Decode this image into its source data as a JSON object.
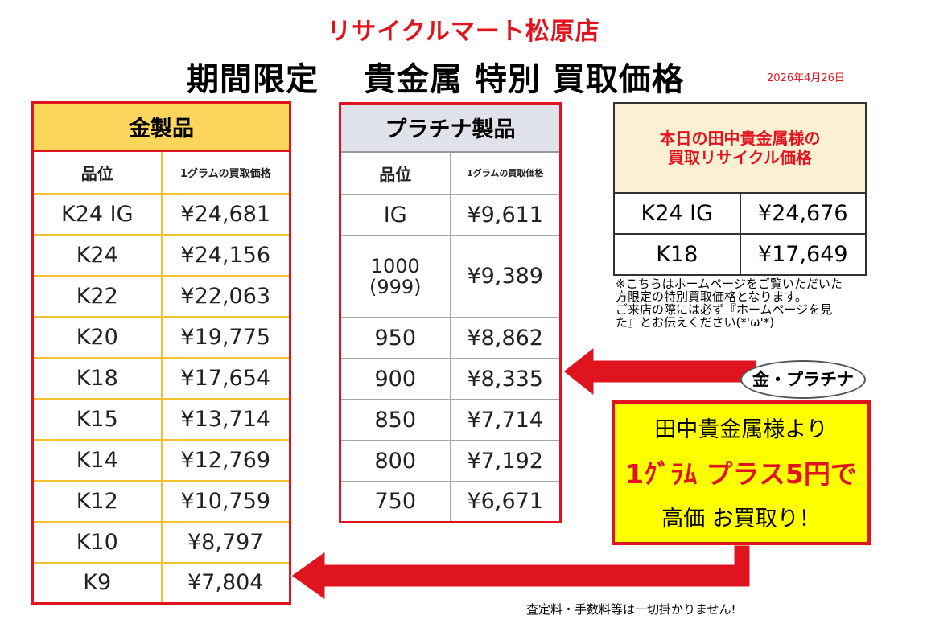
{
  "header": {
    "shop_name": "リサイクルマート松原店",
    "title": "期間限定　 貴金属 特別 買取価格",
    "date": "2026年4月26日"
  },
  "gold": {
    "title": "金製品",
    "col_grade": "品位",
    "col_price": "1グラムの買取価格",
    "rows": [
      {
        "grade": "K24 IG",
        "price": "¥24,681"
      },
      {
        "grade": "K24",
        "price": "¥24,156"
      },
      {
        "grade": "K22",
        "price": "¥22,063"
      },
      {
        "grade": "K20",
        "price": "¥19,775"
      },
      {
        "grade": "K18",
        "price": "¥17,654"
      },
      {
        "grade": "K15",
        "price": "¥13,714"
      },
      {
        "grade": "K14",
        "price": "¥12,769"
      },
      {
        "grade": "K12",
        "price": "¥10,759"
      },
      {
        "grade": "K10",
        "price": "¥8,797"
      },
      {
        "grade": "K9",
        "price": "¥7,804"
      }
    ]
  },
  "platinum": {
    "title": "プラチナ製品",
    "col_grade": "品位",
    "col_price": "1グラムの買取価格",
    "rows": [
      {
        "grade": "IG",
        "price": "¥9,611"
      },
      {
        "grade": "1000",
        "grade2": "(999)",
        "price": "¥9,389"
      },
      {
        "grade": "950",
        "price": "¥8,862"
      },
      {
        "grade": "900",
        "price": "¥8,335"
      },
      {
        "grade": "850",
        "price": "¥7,714"
      },
      {
        "grade": "800",
        "price": "¥7,192"
      },
      {
        "grade": "750",
        "price": "¥6,671"
      }
    ]
  },
  "today": {
    "title_l1": "本日の田中貴金属様の",
    "title_l2": "買取リサイクル価格",
    "rows": [
      {
        "grade": "K24 IG",
        "price": "¥24,676"
      },
      {
        "grade": "K18",
        "price": "¥17,649"
      }
    ]
  },
  "note": {
    "l1": "※こちらはホームページをご覧いただいた方限定の特別買取価格となります。",
    "l2": "ご来店の際には必ず『ホームページを見た』とお伝えください(*'ω'*)"
  },
  "bubble": "金・プラチナ",
  "promo": {
    "l1": "田中貴金属様より",
    "l2": "1ｸﾞﾗﾑ プラス5円で",
    "l3": "高価 お買取り！"
  },
  "footer": "査定料・手数料等は一切掛かりません!",
  "colors": {
    "accent": "#e0141e",
    "gold_header": "#fbd55c",
    "platinum_header": "#dfe2e8",
    "promo_bg": "#ffff00"
  }
}
